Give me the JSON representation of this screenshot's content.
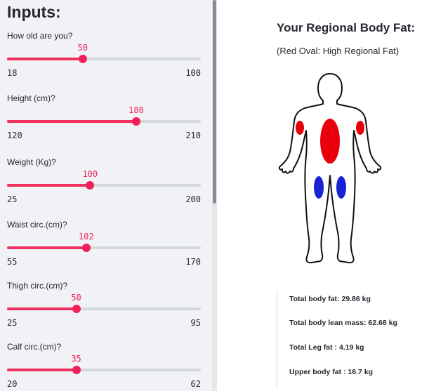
{
  "sidebar": {
    "title": "Inputs:",
    "sliders": [
      {
        "label": "How old are you?",
        "value": 50,
        "min": 18,
        "max": 100
      },
      {
        "label": "Height (cm)?",
        "value": 180,
        "min": 120,
        "max": 210
      },
      {
        "label": "Weight (Kg)?",
        "value": 100,
        "min": 25,
        "max": 200
      },
      {
        "label": "Waist circ.(cm)?",
        "value": 102,
        "min": 55,
        "max": 170
      },
      {
        "label": "Thigh circ.(cm)?",
        "value": 50,
        "min": 25,
        "max": 95
      },
      {
        "label": "Calf circ.(cm)?",
        "value": 35,
        "min": 20,
        "max": 62
      }
    ]
  },
  "main": {
    "title": "Your Regional Body Fat:",
    "subtitle": "(Red Oval: High Regional Fat)",
    "stats": [
      "Total body fat: 29.86 kg",
      "Total body lean mass: 62.68 kg",
      "Total Leg fat : 4.19 kg",
      "Upper body fat : 16.7 kg"
    ]
  },
  "colors": {
    "accent": "#f0205a",
    "high_fat": "#e8000d",
    "low_fat": "#1a22d6",
    "sidebar_bg": "#f0f2f6"
  },
  "icons": [
    "human-body-silhouette"
  ]
}
